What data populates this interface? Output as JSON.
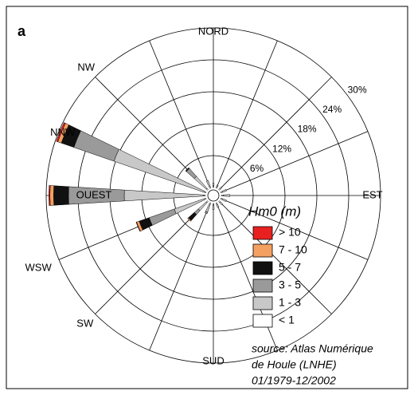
{
  "chart_data": {
    "type": "rose",
    "panel_label": "a",
    "categories": [
      "NORD",
      null,
      null,
      null,
      "EST",
      null,
      null,
      null,
      "SUD",
      null,
      "SW",
      "WSW",
      "OUEST",
      "NNW",
      "NW",
      null
    ],
    "rlim": [
      0,
      30
    ],
    "rticks": [
      {
        "value": 6,
        "label": "6%"
      },
      {
        "value": 12,
        "label": "12%"
      },
      {
        "value": 18,
        "label": "18%"
      },
      {
        "value": 24,
        "label": "24%"
      },
      {
        "value": 30,
        "label": "30%"
      }
    ],
    "legend_title": "Hm0 (m)",
    "series": [
      {
        "name": "< 1",
        "color": "#ffffff",
        "values": [
          0.3,
          0.3,
          0.3,
          0.3,
          0.4,
          0.3,
          0.3,
          0.3,
          0.3,
          0.3,
          0.3,
          0.3,
          0.3,
          0.3,
          0.3,
          0.3
        ]
      },
      {
        "name": "1 - 3",
        "color": "#c8c8c8",
        "values": [
          0.5,
          0.3,
          0.4,
          0.8,
          1.2,
          0.8,
          0.6,
          0.6,
          0.8,
          1.5,
          2,
          6,
          15,
          18,
          3,
          1.2
        ]
      },
      {
        "name": "3 - 5",
        "color": "#9a9a9a",
        "values": [
          0,
          0,
          0,
          0,
          0,
          0,
          0,
          0,
          0,
          0.3,
          1,
          5,
          10.5,
          8,
          2,
          0
        ]
      },
      {
        "name": "5 - 7",
        "color": "#111111",
        "values": [
          0,
          0,
          0,
          0,
          0,
          0,
          0,
          0,
          0,
          0,
          1.5,
          2,
          2.8,
          2.5,
          0.2,
          0
        ]
      },
      {
        "name": "7 - 10",
        "color": "#f4a060",
        "values": [
          0,
          0,
          0,
          0,
          0,
          0,
          0,
          0,
          0,
          0,
          0.2,
          0.5,
          0.7,
          0.7,
          0,
          0
        ]
      },
      {
        "name": "> 10",
        "color": "#e82020",
        "values": [
          0,
          0,
          0,
          0,
          0,
          0,
          0,
          0,
          0,
          0,
          0,
          0.1,
          0.2,
          0.3,
          0,
          0
        ]
      }
    ],
    "source": [
      "source: Atlas Numérique",
      " de Houle (LNHE)",
      "01/1979-12/2002"
    ]
  }
}
